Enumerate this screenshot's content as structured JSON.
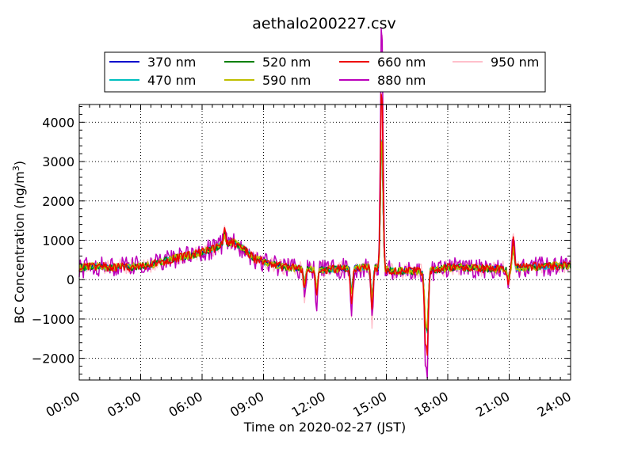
{
  "chart_data": {
    "type": "line",
    "title": "aethalo200227.csv",
    "xlabel": "Time on 2020-02-27 (JST)",
    "ylabel_main": "BC Concentration (ng/m",
    "ylabel_sup": "3",
    "ylabel_close": ")",
    "xlim_hours": [
      0,
      24
    ],
    "ylim": [
      -2550,
      4450
    ],
    "x_ticks": [
      "00:00",
      "03:00",
      "06:00",
      "09:00",
      "12:00",
      "15:00",
      "18:00",
      "21:00",
      "24:00"
    ],
    "y_ticks": [
      -2000,
      -1000,
      0,
      1000,
      2000,
      3000,
      4000
    ],
    "y_tick_labels": [
      "−2000",
      "−1000",
      "0",
      "1000",
      "2000",
      "3000",
      "4000"
    ],
    "grid": true,
    "legend_position": "top-center",
    "baseline_hours": [
      0,
      0.5,
      1,
      1.5,
      2,
      2.5,
      3,
      3.5,
      4,
      4.5,
      5,
      5.5,
      6,
      6.5,
      7,
      7.5,
      8,
      8.5,
      9,
      9.5,
      10,
      10.5,
      11,
      11.5,
      12,
      12.5,
      13,
      13.5,
      14,
      14.5,
      15,
      15.5,
      16,
      16.5,
      17,
      17.5,
      18,
      18.5,
      19,
      19.5,
      20,
      20.5,
      21,
      21.5,
      22,
      22.5,
      23,
      23.5,
      24
    ],
    "baseline_values": [
      300,
      320,
      350,
      300,
      330,
      320,
      350,
      380,
      450,
      520,
      580,
      620,
      700,
      780,
      880,
      950,
      800,
      550,
      450,
      380,
      330,
      300,
      280,
      260,
      250,
      270,
      280,
      300,
      320,
      300,
      250,
      220,
      220,
      210,
      200,
      250,
      300,
      320,
      300,
      290,
      270,
      270,
      280,
      300,
      320,
      330,
      340,
      360,
      350
    ],
    "spikes": [
      {
        "x": 11.0,
        "y": -500
      },
      {
        "x": 11.6,
        "y": -750
      },
      {
        "x": 13.3,
        "y": -950
      },
      {
        "x": 14.3,
        "y": -1150
      },
      {
        "x": 14.75,
        "y": 4100
      },
      {
        "x": 14.8,
        "y": 3800
      },
      {
        "x": 16.9,
        "y": -1750
      },
      {
        "x": 17.0,
        "y": -2250
      },
      {
        "x": 20.95,
        "y": -200
      },
      {
        "x": 21.2,
        "y": 1250
      },
      {
        "x": 7.1,
        "y": 1400
      }
    ],
    "series": [
      {
        "name": "370 nm",
        "color": "#0000cc",
        "noise": 70
      },
      {
        "name": "470 nm",
        "color": "#00bfbf",
        "noise": 80
      },
      {
        "name": "520 nm",
        "color": "#008000",
        "noise": 90
      },
      {
        "name": "590 nm",
        "color": "#bfbf00",
        "noise": 100
      },
      {
        "name": "660 nm",
        "color": "#ee0000",
        "noise": 110
      },
      {
        "name": "880 nm",
        "color": "#bb00bb",
        "noise": 260
      },
      {
        "name": "950 nm",
        "color": "#ffc0cb",
        "noise": 200
      }
    ]
  }
}
